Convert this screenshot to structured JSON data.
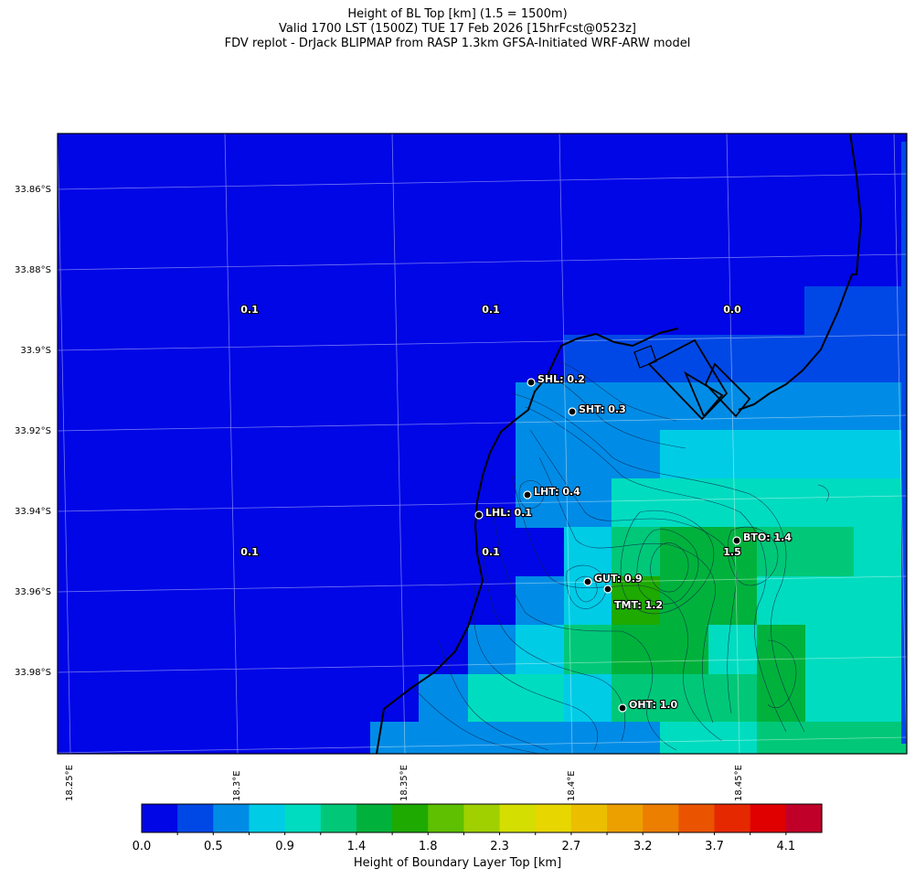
{
  "titles": {
    "line1": "Height of BL Top [km] (1.5 = 1500m)",
    "line2": "Valid 1700 LST (1500Z) TUE 17 Feb 2026 [15hrFcst@0523z]",
    "line3": "FDV replot - DrJack BLIPMAP from RASP 1.3km GFSA-Initiated WRF-ARW model"
  },
  "lat_labels": [
    "33.86°S",
    "33.88°S",
    "33.9°S",
    "33.92°S",
    "33.94°S",
    "33.96°S",
    "33.98°S"
  ],
  "lon_labels": [
    "18.25°E",
    "18.3°E",
    "18.35°E",
    "18.4°E",
    "18.45°E"
  ],
  "stations": [
    {
      "name": "SHL",
      "value": "0.2",
      "text": "SHL: 0.2"
    },
    {
      "name": "SHT",
      "value": "0.3",
      "text": "SHT: 0.3"
    },
    {
      "name": "LHT",
      "value": "0.4",
      "text": "LHT: 0.4"
    },
    {
      "name": "LHL",
      "value": "0.1",
      "text": "LHL: 0.1"
    },
    {
      "name": "BTO",
      "value": "1.4",
      "text": "BTO: 1.4"
    },
    {
      "name": "GUT",
      "value": "0.9",
      "text": "GUT: 0.9"
    },
    {
      "name": "TMT",
      "value": "1.2",
      "text": "TMT: 1.2"
    },
    {
      "name": "OHT",
      "value": "1.0",
      "text": "OHT: 1.0"
    }
  ],
  "grid_values": [
    "0.1",
    "0.1",
    "0.0",
    "0.1",
    "0.1",
    "1.5"
  ],
  "colorbar": {
    "label": "Height of Boundary Layer Top [km]",
    "tick_labels": [
      "0.0",
      "0.5",
      "0.9",
      "1.4",
      "1.8",
      "2.3",
      "2.7",
      "3.2",
      "3.7",
      "4.1"
    ],
    "colors": [
      "#0006e6",
      "#0048e6",
      "#008ce6",
      "#00cce6",
      "#00dcc0",
      "#00c878",
      "#00b23c",
      "#1eaa00",
      "#5ec000",
      "#a0d000",
      "#d4de00",
      "#e8d600",
      "#ecbe00",
      "#eca000",
      "#ec7e00",
      "#ea5400",
      "#e62800",
      "#e00000",
      "#c00028"
    ]
  }
}
